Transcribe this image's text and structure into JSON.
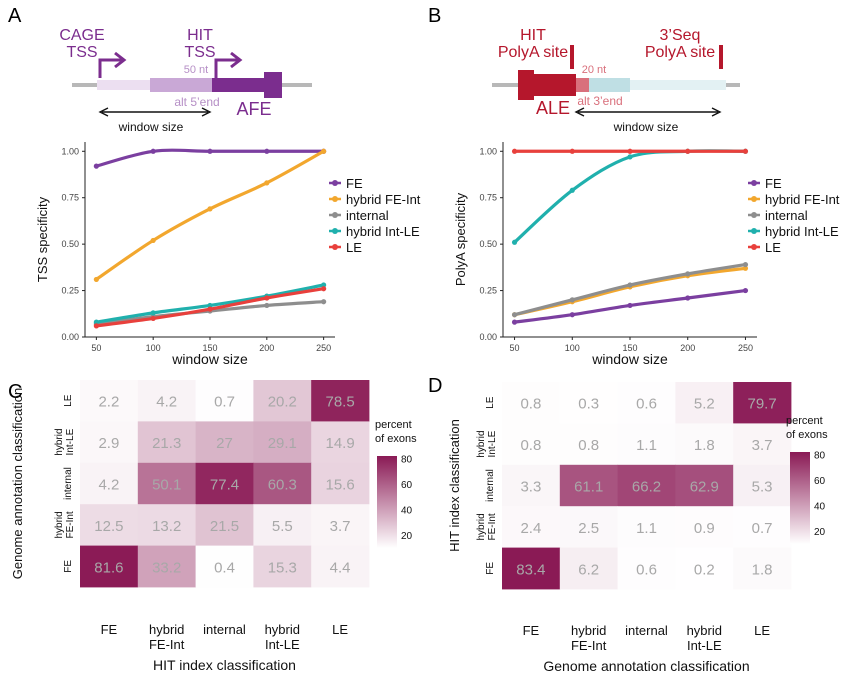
{
  "panels": {
    "A": "A",
    "B": "B",
    "C": "C",
    "D": "D"
  },
  "diagram_a": {
    "cage_line1": "CAGE",
    "cage_line2": "TSS",
    "hit_line1": "HIT",
    "hit_line2": "TSS",
    "nt_label": "50 nt",
    "alt_label": "alt 5’end",
    "exon_label": "AFE",
    "window_label": "window size",
    "color_main": "#7b2d8e",
    "color_light": "#c9a8d6"
  },
  "diagram_b": {
    "hit_line1": "HIT",
    "hit_line2": "PolyA site",
    "seq_line1": "3’Seq",
    "seq_line2": "PolyA site",
    "nt_label": "20 nt",
    "alt_label": "alt 3’end",
    "exon_label": "ALE",
    "window_label": "window size",
    "color_main": "#b5172c",
    "color_light": "#bfdfe4"
  },
  "chart_data": [
    {
      "type": "line",
      "x": [
        50,
        100,
        150,
        200,
        250
      ],
      "xlabel": "window size",
      "ylabel": "TSS specificity",
      "xlim": [
        40,
        260
      ],
      "ylim": [
        0,
        1.05
      ],
      "yticks": [
        "0.00",
        "0.25",
        "0.50",
        "0.75",
        "1.00"
      ],
      "xticks": [
        "50",
        "100",
        "150",
        "200",
        "250"
      ],
      "legend_position": "right",
      "grid": false,
      "series": [
        {
          "name": "FE",
          "color": "#7b3fa0",
          "values": [
            0.92,
            1.0,
            1.0,
            1.0,
            1.0
          ]
        },
        {
          "name": "hybrid FE-Int",
          "color": "#f2a72e",
          "values": [
            0.31,
            0.52,
            0.69,
            0.83,
            1.0
          ]
        },
        {
          "name": "internal",
          "color": "#8e8e8e",
          "values": [
            0.07,
            0.11,
            0.14,
            0.17,
            0.19
          ]
        },
        {
          "name": "hybrid Int-LE",
          "color": "#20b0ad",
          "values": [
            0.08,
            0.13,
            0.17,
            0.22,
            0.28
          ]
        },
        {
          "name": "LE",
          "color": "#e8403c",
          "values": [
            0.06,
            0.1,
            0.15,
            0.21,
            0.26
          ]
        }
      ]
    },
    {
      "type": "line",
      "x": [
        50,
        100,
        150,
        200,
        250
      ],
      "xlabel": "window size",
      "ylabel": "PolyA specificity",
      "xlim": [
        40,
        260
      ],
      "ylim": [
        0,
        1.05
      ],
      "yticks": [
        "0.00",
        "0.25",
        "0.50",
        "0.75",
        "1.00"
      ],
      "xticks": [
        "50",
        "100",
        "150",
        "200",
        "250"
      ],
      "legend_position": "right",
      "grid": false,
      "series": [
        {
          "name": "FE",
          "color": "#7b3fa0",
          "values": [
            0.08,
            0.12,
            0.17,
            0.21,
            0.25
          ]
        },
        {
          "name": "hybrid FE-Int",
          "color": "#f2a72e",
          "values": [
            0.12,
            0.19,
            0.27,
            0.33,
            0.37
          ]
        },
        {
          "name": "internal",
          "color": "#8e8e8e",
          "values": [
            0.12,
            0.2,
            0.28,
            0.34,
            0.39
          ]
        },
        {
          "name": "hybrid Int-LE",
          "color": "#20b0ad",
          "values": [
            0.51,
            0.79,
            0.97,
            1.0,
            1.0
          ]
        },
        {
          "name": "LE",
          "color": "#e8403c",
          "values": [
            1.0,
            1.0,
            1.0,
            1.0,
            1.0
          ]
        }
      ]
    },
    {
      "type": "heatmap",
      "xlabel": "HIT index classification",
      "ylabel": "Genome annotation classification",
      "x_categories": [
        "FE",
        "hybrid FE-Int",
        "internal",
        "hybrid Int-LE",
        "LE"
      ],
      "y_categories": [
        "LE",
        "hybrid Int-LE",
        "internal",
        "hybrid FE-Int",
        "FE"
      ],
      "values": [
        [
          2.2,
          4.2,
          0.7,
          20.2,
          78.5
        ],
        [
          2.9,
          21.3,
          27,
          29.1,
          14.9
        ],
        [
          4.2,
          50.1,
          77.4,
          60.3,
          15.6
        ],
        [
          12.5,
          13.2,
          21.5,
          5.5,
          3.7
        ],
        [
          81.6,
          33.2,
          0.4,
          15.3,
          4.4
        ]
      ],
      "colorbar_title": "percent of exons",
      "colorbar_ticks": [
        20,
        40,
        60,
        80
      ],
      "color_high": "#8a1a55"
    },
    {
      "type": "heatmap",
      "xlabel": "Genome annotation classification",
      "ylabel": "HIT index classification",
      "x_categories": [
        "FE",
        "hybrid FE-Int",
        "internal",
        "hybrid Int-LE",
        "LE"
      ],
      "y_categories": [
        "LE",
        "hybrid Int-LE",
        "internal",
        "hybrid FE-Int",
        "FE"
      ],
      "values": [
        [
          0.8,
          0.3,
          0.6,
          5.2,
          79.7
        ],
        [
          0.8,
          0.8,
          1.1,
          1.8,
          3.7
        ],
        [
          3.3,
          61.1,
          66.2,
          62.9,
          5.3
        ],
        [
          2.4,
          2.5,
          1.1,
          0.9,
          0.7
        ],
        [
          83.4,
          6.2,
          0.6,
          0.2,
          1.8
        ]
      ],
      "colorbar_title": "percent of exons",
      "colorbar_ticks": [
        20,
        40,
        60,
        80
      ],
      "color_high": "#8a1a55"
    }
  ]
}
